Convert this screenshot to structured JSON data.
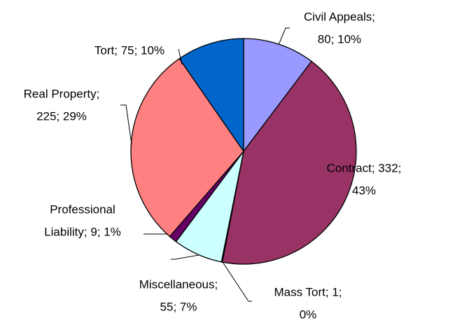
{
  "chart_data": {
    "type": "pie",
    "categories": [
      "Civil Appeals",
      "Contract",
      "Mass Tort",
      "Miscellaneous",
      "Professional Liability",
      "Real Property",
      "Tort"
    ],
    "values": [
      80,
      332,
      1,
      55,
      9,
      225,
      75
    ],
    "value_labels": [
      [
        "Civil Appeals;",
        "80; 10%"
      ],
      [
        "Contract; 332;",
        "43%"
      ],
      [
        "Mass Tort; 1;",
        "0%"
      ],
      [
        "Miscellaneous;",
        "55; 7%"
      ],
      [
        "Professional",
        "Liability; 9; 1%"
      ],
      [
        "Real Property;",
        "225; 29%"
      ],
      [
        "Tort; 75; 10%"
      ]
    ],
    "colors": [
      "#9999ff",
      "#993366",
      "#ffffcc",
      "#ccffff",
      "#660066",
      "#ff8080",
      "#0066cc"
    ]
  }
}
